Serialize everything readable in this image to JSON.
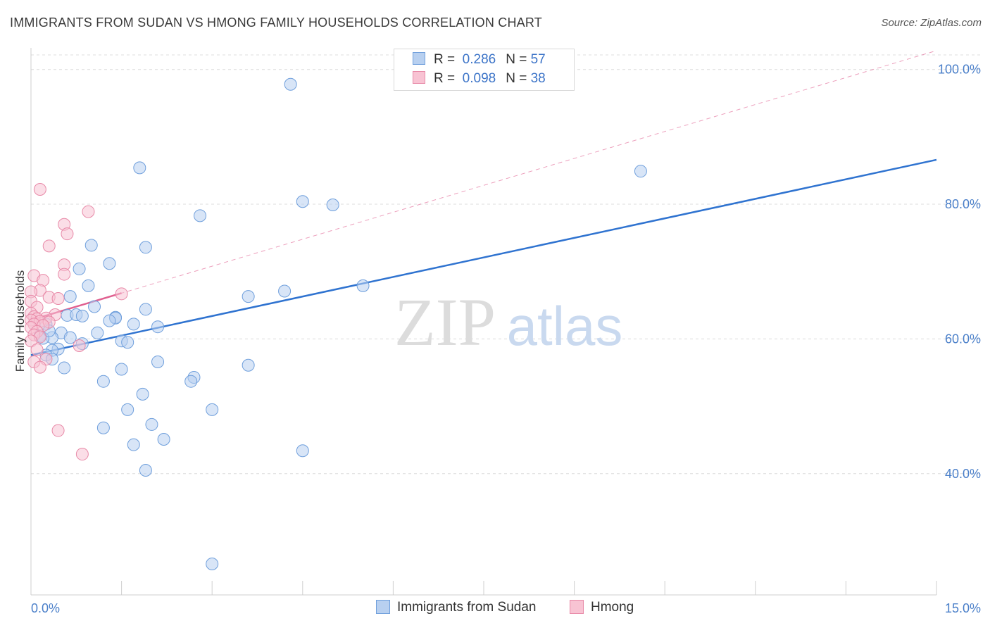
{
  "header": {
    "title": "IMMIGRANTS FROM SUDAN VS HMONG FAMILY HOUSEHOLDS CORRELATION CHART",
    "source": "Source: ZipAtlas.com"
  },
  "watermark": {
    "zip": "ZIP",
    "atlas": "atlas"
  },
  "legend": {
    "r_label": "R =",
    "n_label": "N =",
    "rows": [
      {
        "r": "0.286",
        "n": "57"
      },
      {
        "r": "0.098",
        "n": "38"
      }
    ]
  },
  "colors": {
    "blue_fill": "#b8d0f0",
    "blue_stroke": "#6f9fdc",
    "blue_line": "#2f73d0",
    "pink_fill": "#f8c3d3",
    "pink_stroke": "#e88aa8",
    "pink_line": "#e06090",
    "grid": "#dcdcdc",
    "tick_text": "#4a7fc9"
  },
  "chart_data": {
    "type": "scatter",
    "title": "IMMIGRANTS FROM SUDAN VS HMONG FAMILY HOUSEHOLDS CORRELATION CHART",
    "xlabel": "",
    "ylabel": "Family Households",
    "xlim": [
      0,
      15
    ],
    "ylim": [
      22,
      103
    ],
    "x_tick_labels": [
      "0.0%",
      "15.0%"
    ],
    "y_ticks": [
      40,
      60,
      80,
      100
    ],
    "y_tick_labels": [
      "40.0%",
      "60.0%",
      "80.0%",
      "100.0%"
    ],
    "grid": true,
    "legend_position": "top-center",
    "series": [
      {
        "name": "Immigrants from Sudan",
        "color": "blue",
        "r": 0.286,
        "n": 57,
        "trend": {
          "x": [
            0,
            15
          ],
          "y": [
            57.6,
            86.6
          ],
          "style": "solid"
        },
        "points": [
          [
            4.3,
            97.8
          ],
          [
            1.8,
            85.4
          ],
          [
            10.1,
            84.9
          ],
          [
            4.5,
            80.4
          ],
          [
            5.0,
            79.9
          ],
          [
            2.8,
            78.3
          ],
          [
            1.0,
            73.9
          ],
          [
            1.9,
            73.6
          ],
          [
            1.3,
            71.2
          ],
          [
            0.8,
            70.4
          ],
          [
            0.95,
            67.9
          ],
          [
            5.5,
            67.9
          ],
          [
            4.2,
            67.1
          ],
          [
            3.6,
            66.3
          ],
          [
            0.65,
            66.3
          ],
          [
            1.05,
            64.8
          ],
          [
            1.9,
            64.4
          ],
          [
            0.6,
            63.5
          ],
          [
            0.75,
            63.6
          ],
          [
            0.85,
            63.4
          ],
          [
            1.4,
            63.2
          ],
          [
            1.4,
            63.1
          ],
          [
            1.3,
            62.7
          ],
          [
            1.7,
            62.2
          ],
          [
            0.25,
            62.2
          ],
          [
            2.1,
            61.8
          ],
          [
            1.1,
            60.9
          ],
          [
            0.5,
            60.9
          ],
          [
            0.15,
            60.5
          ],
          [
            0.35,
            60.2
          ],
          [
            0.65,
            60.2
          ],
          [
            0.2,
            60.1
          ],
          [
            1.5,
            59.7
          ],
          [
            1.6,
            59.5
          ],
          [
            0.85,
            59.3
          ],
          [
            0.45,
            58.5
          ],
          [
            0.35,
            58.3
          ],
          [
            0.25,
            57.6
          ],
          [
            0.35,
            57.0
          ],
          [
            2.1,
            56.6
          ],
          [
            3.6,
            56.1
          ],
          [
            0.55,
            55.7
          ],
          [
            1.5,
            55.5
          ],
          [
            2.7,
            54.3
          ],
          [
            2.65,
            53.7
          ],
          [
            1.2,
            53.7
          ],
          [
            1.85,
            51.8
          ],
          [
            1.6,
            49.5
          ],
          [
            3.0,
            49.5
          ],
          [
            2.0,
            47.3
          ],
          [
            1.2,
            46.8
          ],
          [
            2.2,
            45.1
          ],
          [
            1.7,
            44.3
          ],
          [
            4.5,
            43.4
          ],
          [
            1.9,
            40.5
          ],
          [
            3.0,
            26.6
          ],
          [
            0.3,
            61.2
          ]
        ]
      },
      {
        "name": "Hmong",
        "color": "pink",
        "r": 0.098,
        "n": 38,
        "trend": {
          "x": [
            0,
            1.5
          ],
          "y": [
            62.8,
            66.8
          ],
          "style": "solid"
        },
        "trend_extended": {
          "x": [
            0,
            15
          ],
          "y": [
            62.8,
            102.8
          ],
          "style": "dashed"
        },
        "points": [
          [
            0.15,
            82.2
          ],
          [
            0.95,
            78.9
          ],
          [
            0.55,
            77.0
          ],
          [
            0.6,
            75.6
          ],
          [
            0.3,
            73.8
          ],
          [
            0.55,
            71.0
          ],
          [
            0.55,
            69.6
          ],
          [
            0.05,
            69.4
          ],
          [
            0.2,
            68.7
          ],
          [
            0.15,
            67.2
          ],
          [
            0.0,
            67.0
          ],
          [
            1.5,
            66.7
          ],
          [
            0.3,
            66.2
          ],
          [
            0.45,
            66.0
          ],
          [
            0.0,
            65.6
          ],
          [
            0.1,
            64.7
          ],
          [
            0.0,
            63.8
          ],
          [
            0.4,
            63.6
          ],
          [
            0.05,
            63.3
          ],
          [
            0.25,
            63.1
          ],
          [
            0.1,
            63.0
          ],
          [
            0.0,
            62.8
          ],
          [
            0.15,
            62.6
          ],
          [
            0.3,
            62.5
          ],
          [
            0.05,
            62.2
          ],
          [
            0.2,
            62.0
          ],
          [
            0.0,
            61.7
          ],
          [
            0.1,
            61.1
          ],
          [
            0.05,
            60.6
          ],
          [
            0.15,
            60.3
          ],
          [
            0.0,
            59.7
          ],
          [
            0.8,
            59.0
          ],
          [
            0.25,
            57.0
          ],
          [
            0.05,
            56.6
          ],
          [
            0.15,
            55.8
          ],
          [
            0.45,
            46.4
          ],
          [
            0.85,
            42.9
          ],
          [
            0.1,
            58.4
          ]
        ]
      }
    ]
  },
  "bottom_legend": [
    {
      "label": "Immigrants from Sudan"
    },
    {
      "label": "Hmong"
    }
  ]
}
